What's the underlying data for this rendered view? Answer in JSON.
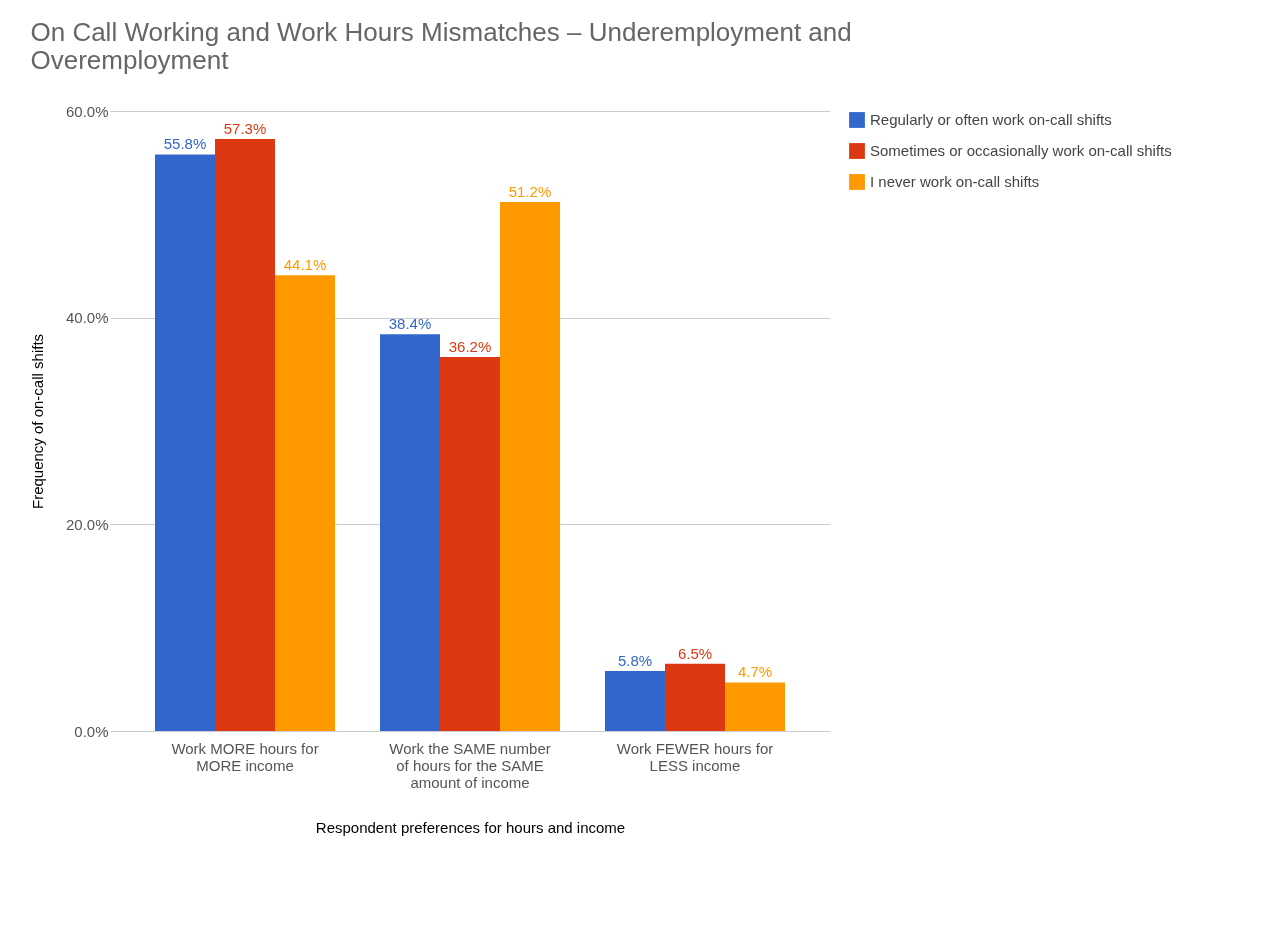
{
  "chart_data": {
    "type": "bar",
    "title": "On Call Working and Work Hours Mismatches – Underemployment and Overemployment",
    "xlabel": "Respondent preferences for hours and income",
    "ylabel": "Frequency of on-call shifts",
    "categories": [
      "Work MORE hours for MORE income",
      "Work the SAME number of hours for the SAME amount of income",
      "Work FEWER hours for LESS income"
    ],
    "series": [
      {
        "name": "Regularly or often work on-call shifts",
        "color": "#3366cc",
        "values": [
          55.8,
          38.4,
          5.8
        ],
        "value_labels": [
          "55.8%",
          "38.4%",
          "5.8%"
        ]
      },
      {
        "name": "Sometimes or occasionally work on-call shifts",
        "color": "#dc3912",
        "values": [
          57.3,
          36.2,
          6.5
        ],
        "value_labels": [
          "57.3%",
          "36.2%",
          "6.5%"
        ]
      },
      {
        "name": "I never work on-call shifts",
        "color": "#ff9900",
        "values": [
          44.1,
          51.2,
          4.7
        ],
        "value_labels": [
          "44.1%",
          "51.2%",
          "4.7%"
        ]
      }
    ],
    "ylim": [
      0,
      60
    ],
    "yticks": [
      {
        "value": 0,
        "label": "0.0%"
      },
      {
        "value": 20,
        "label": "20.0%"
      },
      {
        "value": 40,
        "label": "40.0%"
      },
      {
        "value": 60,
        "label": "60.0%"
      }
    ],
    "grid": "y",
    "legend": "top right"
  }
}
